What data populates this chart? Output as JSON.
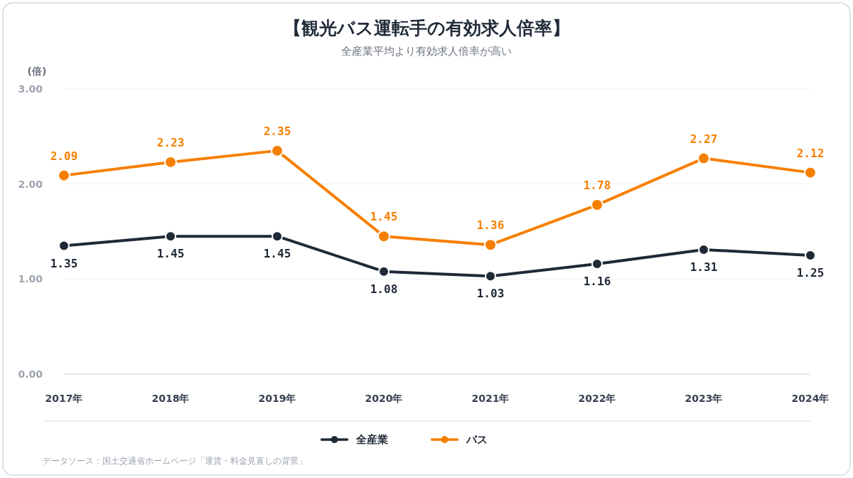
{
  "chart_data": {
    "type": "line",
    "title": "【観光バス運転手の有効求人倍率】",
    "subtitle": "全産業平均より有効求人倍率が高い",
    "ylabel": "(倍)",
    "categories": [
      "2017年",
      "2018年",
      "2019年",
      "2020年",
      "2021年",
      "2022年",
      "2023年",
      "2024年"
    ],
    "series": [
      {
        "name": "全産業",
        "color": "#1f2937",
        "values": [
          1.35,
          1.45,
          1.45,
          1.08,
          1.03,
          1.16,
          1.31,
          1.25
        ]
      },
      {
        "name": "バス",
        "color": "#f77f00",
        "values": [
          2.09,
          2.23,
          2.35,
          1.45,
          1.36,
          1.78,
          2.27,
          2.12
        ]
      }
    ],
    "ylim": [
      0,
      3
    ],
    "yticks": [
      {
        "value": 0,
        "label": "0.00"
      },
      {
        "value": 1,
        "label": "1.00"
      },
      {
        "value": 2,
        "label": "2.00"
      },
      {
        "value": 3,
        "label": "3.00"
      }
    ],
    "grid": "y",
    "legend": "bottom",
    "marker": "circle",
    "line_style": "solid",
    "data_labels": true,
    "annotations": [
      "データソース：国土交通省ホームページ「運賃・料金見直しの背景」"
    ]
  }
}
